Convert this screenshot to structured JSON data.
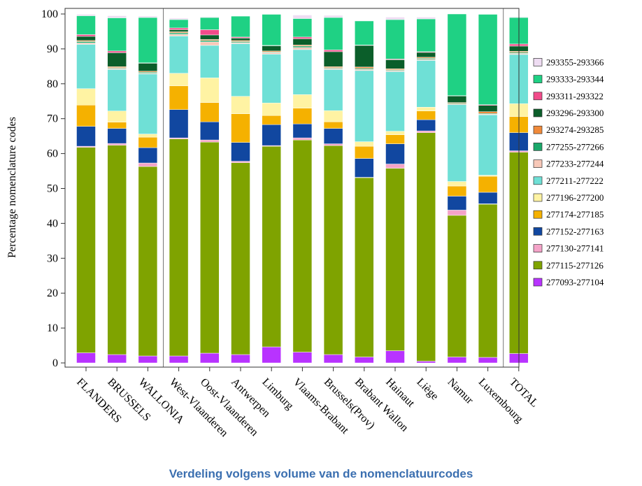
{
  "caption": "Verdeling volgens volume van de nomenclatuurcodes",
  "chart_data": {
    "type": "bar",
    "stacked": true,
    "title": "",
    "xlabel": "",
    "ylabel": "Percentage nomenclature codes",
    "ylim": [
      0,
      100
    ],
    "yticks": [
      0,
      10,
      20,
      30,
      40,
      50,
      60,
      70,
      80,
      90,
      100
    ],
    "grid": false,
    "legend_position": "right",
    "group_separators_after": [
      "WALLONIA",
      "Luxembourg"
    ],
    "categories": [
      "FLANDERS",
      "BRUSSELS",
      "WALLONIA",
      "West-Vlaanderen",
      "Oost-Vlaanderen",
      "Antwerpen",
      "Limburg",
      "Vlaams-Brabant",
      "Brussels(Prov)",
      "Brabant Wallon",
      "Hainaut",
      "Liège",
      "Namur",
      "Luxembourg",
      "TOTAL"
    ],
    "series": [
      {
        "name": "277093-277104",
        "color": "#b833ff",
        "values": [
          2.9,
          2.4,
          2.0,
          2.0,
          2.8,
          2.4,
          4.6,
          3.1,
          2.4,
          1.7,
          3.5,
          0.5,
          1.7,
          1.6,
          2.7
        ]
      },
      {
        "name": "277115-277126",
        "color": "#7fa300",
        "values": [
          58.9,
          60.0,
          54.3,
          62.2,
          60.5,
          55.0,
          57.5,
          60.8,
          59.9,
          51.4,
          52.3,
          65.5,
          40.6,
          43.9,
          57.7
        ]
      },
      {
        "name": "277130-277141",
        "color": "#f4a3c8",
        "values": [
          0.3,
          0.5,
          1.0,
          0.3,
          0.6,
          0.4,
          0.2,
          0.6,
          0.5,
          0.1,
          1.2,
          0.5,
          1.5,
          0.1,
          0.4
        ]
      },
      {
        "name": "277152-277163",
        "color": "#1147a0",
        "values": [
          5.7,
          4.3,
          4.4,
          8.1,
          5.2,
          5.4,
          6.0,
          4.0,
          4.4,
          5.4,
          5.8,
          3.2,
          4.0,
          3.3,
          5.2
        ]
      },
      {
        "name": "277174-277185",
        "color": "#f5b100",
        "values": [
          6.1,
          1.8,
          3.0,
          6.8,
          5.5,
          8.2,
          2.6,
          4.5,
          1.9,
          3.5,
          2.6,
          2.5,
          2.9,
          4.6,
          4.6
        ]
      },
      {
        "name": "277196-277200",
        "color": "#fff3a3",
        "values": [
          4.7,
          3.2,
          0.9,
          3.6,
          7.1,
          5.0,
          3.6,
          3.9,
          3.2,
          1.3,
          1.0,
          1.1,
          1.3,
          0.3,
          3.7
        ]
      },
      {
        "name": "277211-277222",
        "color": "#6fe0d6",
        "values": [
          12.7,
          11.9,
          17.2,
          10.7,
          9.3,
          15.1,
          14.0,
          12.9,
          11.8,
          20.4,
          17.1,
          13.4,
          22.0,
          17.3,
          14.1
        ]
      },
      {
        "name": "277233-277244",
        "color": "#f8c8b8",
        "values": [
          0.4,
          0.3,
          0.2,
          0.5,
          1.0,
          0.3,
          0.4,
          0.6,
          0.3,
          0.3,
          0.3,
          0.3,
          0.2,
          0.2,
          0.3
        ]
      },
      {
        "name": "277255-277266",
        "color": "#1aa86a",
        "values": [
          0.4,
          0.2,
          0.3,
          0.4,
          0.4,
          0.3,
          0.2,
          0.4,
          0.2,
          0.3,
          0.2,
          0.3,
          0.2,
          0.2,
          0.3
        ]
      },
      {
        "name": "293274-293285",
        "color": "#f08a3a",
        "values": [
          0.3,
          0.3,
          0.3,
          0.3,
          0.3,
          0.3,
          0.3,
          0.3,
          0.3,
          0.4,
          0.3,
          0.3,
          0.2,
          0.5,
          0.3
        ]
      },
      {
        "name": "293296-293300",
        "color": "#0b5e2a",
        "values": [
          1.2,
          4.0,
          2.3,
          0.6,
          1.3,
          0.7,
          1.5,
          1.8,
          4.3,
          6.2,
          2.6,
          1.4,
          1.9,
          1.8,
          1.5
        ]
      },
      {
        "name": "293311-293322",
        "color": "#f24b8a",
        "values": [
          0.5,
          0.5,
          0.1,
          0.5,
          1.5,
          0.3,
          0.1,
          0.5,
          0.5,
          0.1,
          0.2,
          0.2,
          0.1,
          0.2,
          0.6
        ]
      },
      {
        "name": "293333-293344",
        "color": "#1fd184",
        "values": [
          5.4,
          9.5,
          13.0,
          2.4,
          3.5,
          6.0,
          8.9,
          5.3,
          9.3,
          6.9,
          11.3,
          9.4,
          23.4,
          25.9,
          7.6
        ]
      },
      {
        "name": "293355-293366",
        "color": "#eedcf2",
        "values": [
          0.4,
          0.6,
          0.4,
          0.4,
          0.2,
          0.1,
          0.0,
          1.0,
          0.6,
          0.0,
          0.7,
          0.5,
          0.0,
          0.0,
          0.2
        ]
      }
    ]
  }
}
